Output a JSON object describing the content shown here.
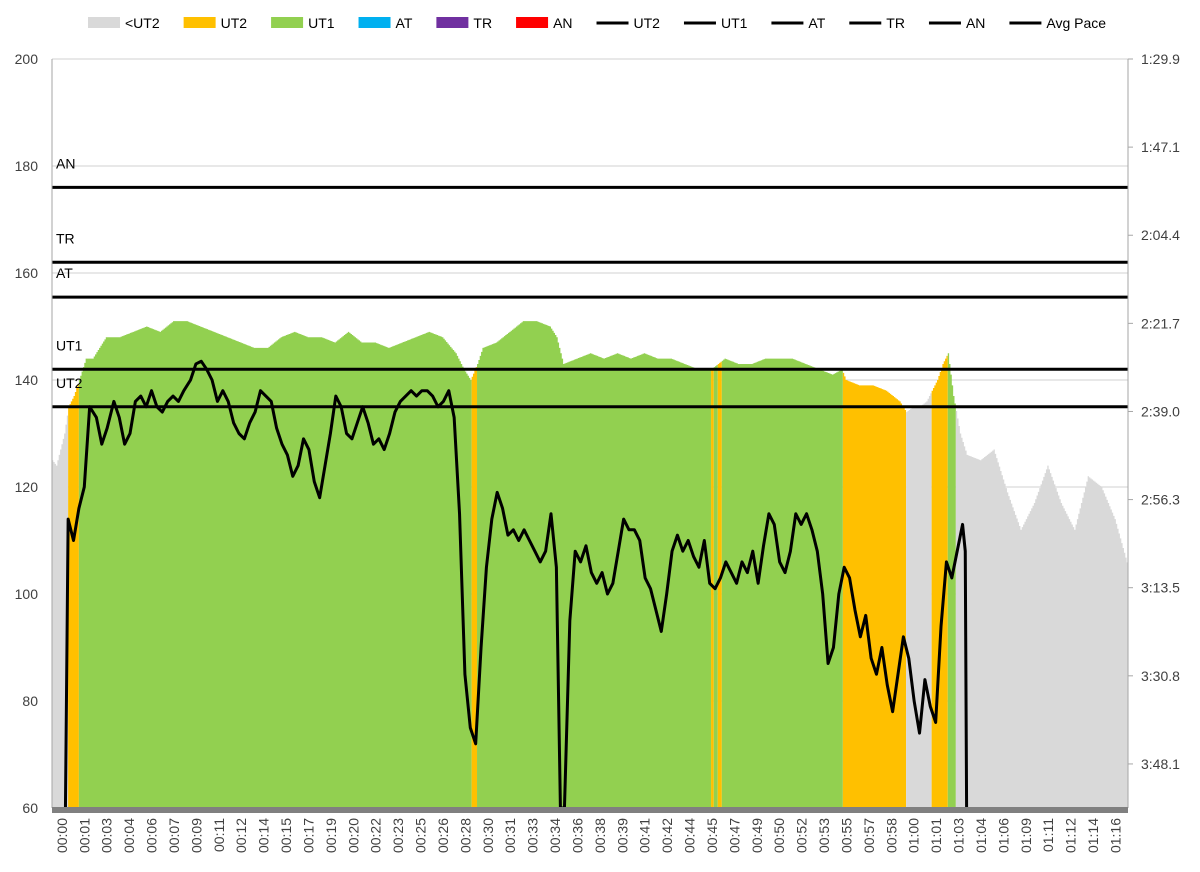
{
  "chart_data": {
    "type": "area",
    "x_unit": "elapsed time (hh:mm)",
    "categories": [
      "00:00",
      "00:01",
      "00:03",
      "00:04",
      "00:06",
      "00:07",
      "00:09",
      "00:11",
      "00:12",
      "00:14",
      "00:15",
      "00:17",
      "00:19",
      "00:20",
      "00:22",
      "00:23",
      "00:25",
      "00:26",
      "00:28",
      "00:30",
      "00:31",
      "00:33",
      "00:34",
      "00:36",
      "00:38",
      "00:39",
      "00:41",
      "00:42",
      "00:44",
      "00:45",
      "00:47",
      "00:49",
      "00:50",
      "00:52",
      "00:53",
      "00:55",
      "00:57",
      "00:58",
      "01:00",
      "01:01",
      "01:03",
      "01:04",
      "01:06",
      "01:09",
      "01:11",
      "01:12",
      "01:14",
      "01:16"
    ],
    "y_left": {
      "min": 60,
      "max": 200,
      "step": 20,
      "ticks": [
        "60",
        "80",
        "100",
        "120",
        "140",
        "160",
        "180",
        "200"
      ]
    },
    "y_right": {
      "ticks": [
        "3:48.1",
        "3:30.8",
        "3:13.5",
        "2:56.3",
        "2:39.0",
        "2:21.7",
        "2:04.4",
        "1:47.1",
        "1:29.9"
      ]
    },
    "legend": [
      "<UT2",
      "UT2",
      "UT1",
      "AT",
      "TR",
      "AN",
      "UT2",
      "UT1",
      "AT",
      "TR",
      "AN",
      "Avg Pace"
    ],
    "zone_colors": {
      "<UT2": "#d9d9d9",
      "UT2": "#ffc000",
      "UT1": "#92d050",
      "AT": "#00b0f0",
      "TR": "#7030a0",
      "AN": "#ff0000"
    },
    "threshold_lines": [
      {
        "name": "AN",
        "value": 176
      },
      {
        "name": "TR",
        "value": 162
      },
      {
        "name": "AT",
        "value": 155.5
      },
      {
        "name": "UT1",
        "value": 142
      },
      {
        "name": "UT2",
        "value": 135
      }
    ],
    "heart_rate_profile": [
      [
        0,
        125
      ],
      [
        0.3,
        124
      ],
      [
        0.6,
        127
      ],
      [
        0.9,
        130
      ],
      [
        1.2,
        135
      ],
      [
        1.6,
        137
      ],
      [
        2.0,
        140
      ],
      [
        2.5,
        144
      ],
      [
        3.0,
        144
      ],
      [
        3.5,
        146
      ],
      [
        4.0,
        148
      ],
      [
        5.0,
        148
      ],
      [
        6.0,
        149
      ],
      [
        7.0,
        150
      ],
      [
        8.0,
        149
      ],
      [
        9.0,
        151
      ],
      [
        10.0,
        151
      ],
      [
        11.0,
        150
      ],
      [
        12.0,
        149
      ],
      [
        13.0,
        148
      ],
      [
        14.0,
        147
      ],
      [
        15.0,
        146
      ],
      [
        16.0,
        146
      ],
      [
        17.0,
        148
      ],
      [
        18.0,
        149
      ],
      [
        19.0,
        148
      ],
      [
        20.0,
        148
      ],
      [
        21.0,
        147
      ],
      [
        22.0,
        149
      ],
      [
        23.0,
        147
      ],
      [
        24.0,
        147
      ],
      [
        25.0,
        146
      ],
      [
        26.0,
        147
      ],
      [
        27.0,
        148
      ],
      [
        28.0,
        149
      ],
      [
        29.0,
        148
      ],
      [
        30.0,
        145
      ],
      [
        30.6,
        142
      ],
      [
        31.1,
        140
      ],
      [
        31.6,
        143
      ],
      [
        32.0,
        146
      ],
      [
        33.0,
        147
      ],
      [
        34.0,
        149
      ],
      [
        35.0,
        151
      ],
      [
        36.0,
        151
      ],
      [
        37.0,
        150
      ],
      [
        37.5,
        148
      ],
      [
        38.0,
        143
      ],
      [
        39.0,
        144
      ],
      [
        40.0,
        145
      ],
      [
        41.0,
        144
      ],
      [
        42.0,
        145
      ],
      [
        43.0,
        144
      ],
      [
        44.0,
        145
      ],
      [
        45.0,
        144
      ],
      [
        46.0,
        144
      ],
      [
        47.0,
        143
      ],
      [
        48.0,
        142
      ],
      [
        49.0,
        142
      ],
      [
        50.0,
        144
      ],
      [
        51.0,
        143
      ],
      [
        52.0,
        143
      ],
      [
        53.0,
        144
      ],
      [
        54.0,
        144
      ],
      [
        55.0,
        144
      ],
      [
        56.0,
        143
      ],
      [
        57.0,
        142
      ],
      [
        58.0,
        141
      ],
      [
        58.7,
        142
      ],
      [
        59.0,
        140
      ],
      [
        60.0,
        139
      ],
      [
        61.0,
        139
      ],
      [
        62.0,
        138
      ],
      [
        63.0,
        136
      ],
      [
        63.5,
        134
      ],
      [
        64.0,
        135
      ],
      [
        64.5,
        135
      ],
      [
        65.0,
        136
      ],
      [
        65.4,
        138
      ],
      [
        65.8,
        140
      ],
      [
        66.2,
        143
      ],
      [
        66.6,
        145
      ],
      [
        67.0,
        137
      ],
      [
        67.5,
        130
      ],
      [
        68.0,
        126
      ],
      [
        69.0,
        125
      ],
      [
        70.0,
        127
      ],
      [
        71.0,
        119
      ],
      [
        72.0,
        112
      ],
      [
        73.0,
        117
      ],
      [
        74.0,
        124
      ],
      [
        75.0,
        117
      ],
      [
        76.0,
        112
      ],
      [
        77.0,
        122
      ],
      [
        78.0,
        120
      ],
      [
        79.0,
        114
      ],
      [
        80.0,
        105
      ]
    ],
    "zone_segments": [
      [
        0,
        1.2,
        "<UT2"
      ],
      [
        1.2,
        2.0,
        "UT2"
      ],
      [
        2.0,
        31.2,
        "UT1"
      ],
      [
        31.2,
        31.6,
        "UT2"
      ],
      [
        31.6,
        49.0,
        "UT1"
      ],
      [
        49.0,
        49.2,
        "UT2"
      ],
      [
        49.2,
        49.5,
        "UT1"
      ],
      [
        49.5,
        49.8,
        "UT2"
      ],
      [
        49.8,
        58.8,
        "UT1"
      ],
      [
        58.8,
        63.5,
        "UT2"
      ],
      [
        63.5,
        65.4,
        "<UT2"
      ],
      [
        65.4,
        66.6,
        "UT2"
      ],
      [
        66.6,
        67.2,
        "UT1"
      ],
      [
        67.2,
        80.0,
        "<UT2"
      ]
    ],
    "avg_pace_series": [
      [
        1.0,
        60
      ],
      [
        1.2,
        114
      ],
      [
        1.6,
        110
      ],
      [
        2.0,
        116
      ],
      [
        2.4,
        120
      ],
      [
        2.8,
        135
      ],
      [
        3.3,
        133
      ],
      [
        3.7,
        128
      ],
      [
        4.1,
        131
      ],
      [
        4.6,
        136
      ],
      [
        5.0,
        133
      ],
      [
        5.4,
        128
      ],
      [
        5.8,
        130
      ],
      [
        6.2,
        136
      ],
      [
        6.6,
        137
      ],
      [
        7.0,
        135
      ],
      [
        7.4,
        138
      ],
      [
        7.8,
        135
      ],
      [
        8.2,
        134
      ],
      [
        8.6,
        136
      ],
      [
        9.0,
        137
      ],
      [
        9.4,
        136
      ],
      [
        9.8,
        138
      ],
      [
        10.3,
        140
      ],
      [
        10.7,
        143
      ],
      [
        11.1,
        143.5
      ],
      [
        11.5,
        142
      ],
      [
        11.9,
        140
      ],
      [
        12.3,
        136
      ],
      [
        12.7,
        138
      ],
      [
        13.1,
        136
      ],
      [
        13.5,
        132
      ],
      [
        13.9,
        130
      ],
      [
        14.3,
        129
      ],
      [
        14.7,
        132
      ],
      [
        15.1,
        134
      ],
      [
        15.5,
        138
      ],
      [
        15.9,
        137
      ],
      [
        16.3,
        136
      ],
      [
        16.7,
        131
      ],
      [
        17.1,
        128
      ],
      [
        17.5,
        126
      ],
      [
        17.9,
        122
      ],
      [
        18.3,
        124
      ],
      [
        18.7,
        129
      ],
      [
        19.1,
        127
      ],
      [
        19.5,
        121
      ],
      [
        19.9,
        118
      ],
      [
        20.3,
        124
      ],
      [
        20.7,
        130
      ],
      [
        21.1,
        137
      ],
      [
        21.5,
        135
      ],
      [
        21.9,
        130
      ],
      [
        22.3,
        129
      ],
      [
        22.7,
        132
      ],
      [
        23.1,
        135
      ],
      [
        23.5,
        132
      ],
      [
        23.9,
        128
      ],
      [
        24.3,
        129
      ],
      [
        24.7,
        127
      ],
      [
        25.1,
        130
      ],
      [
        25.5,
        134
      ],
      [
        25.9,
        136
      ],
      [
        26.3,
        137
      ],
      [
        26.7,
        138
      ],
      [
        27.1,
        137
      ],
      [
        27.5,
        138
      ],
      [
        27.9,
        138
      ],
      [
        28.3,
        137
      ],
      [
        28.7,
        135
      ],
      [
        29.1,
        136
      ],
      [
        29.5,
        138
      ],
      [
        29.9,
        133
      ],
      [
        30.3,
        115
      ],
      [
        30.7,
        85
      ],
      [
        31.1,
        75
      ],
      [
        31.5,
        72
      ],
      [
        31.9,
        90
      ],
      [
        32.3,
        105
      ],
      [
        32.7,
        114
      ],
      [
        33.1,
        119
      ],
      [
        33.5,
        116
      ],
      [
        33.9,
        111
      ],
      [
        34.3,
        112
      ],
      [
        34.7,
        110
      ],
      [
        35.1,
        112
      ],
      [
        35.5,
        110
      ],
      [
        35.9,
        108
      ],
      [
        36.3,
        106
      ],
      [
        36.7,
        108
      ],
      [
        37.1,
        115
      ],
      [
        37.5,
        105
      ],
      [
        37.8,
        60
      ],
      [
        38.1,
        60
      ],
      [
        38.5,
        95
      ],
      [
        38.9,
        108
      ],
      [
        39.3,
        106
      ],
      [
        39.7,
        109
      ],
      [
        40.1,
        104
      ],
      [
        40.5,
        102
      ],
      [
        40.9,
        104
      ],
      [
        41.3,
        100
      ],
      [
        41.7,
        102
      ],
      [
        42.1,
        108
      ],
      [
        42.5,
        114
      ],
      [
        42.9,
        112
      ],
      [
        43.3,
        112
      ],
      [
        43.7,
        110
      ],
      [
        44.1,
        103
      ],
      [
        44.5,
        101
      ],
      [
        44.9,
        97
      ],
      [
        45.3,
        93
      ],
      [
        45.7,
        100
      ],
      [
        46.1,
        108
      ],
      [
        46.5,
        111
      ],
      [
        46.9,
        108
      ],
      [
        47.3,
        110
      ],
      [
        47.7,
        107
      ],
      [
        48.1,
        105
      ],
      [
        48.5,
        110
      ],
      [
        48.9,
        102
      ],
      [
        49.3,
        101
      ],
      [
        49.7,
        103
      ],
      [
        50.1,
        106
      ],
      [
        50.5,
        104
      ],
      [
        50.9,
        102
      ],
      [
        51.3,
        106
      ],
      [
        51.7,
        104
      ],
      [
        52.1,
        108
      ],
      [
        52.5,
        102
      ],
      [
        52.9,
        109
      ],
      [
        53.3,
        115
      ],
      [
        53.7,
        113
      ],
      [
        54.1,
        106
      ],
      [
        54.5,
        104
      ],
      [
        54.9,
        108
      ],
      [
        55.3,
        115
      ],
      [
        55.7,
        113
      ],
      [
        56.1,
        115
      ],
      [
        56.5,
        112
      ],
      [
        56.9,
        108
      ],
      [
        57.3,
        100
      ],
      [
        57.7,
        87
      ],
      [
        58.1,
        90
      ],
      [
        58.5,
        100
      ],
      [
        58.9,
        105
      ],
      [
        59.3,
        103
      ],
      [
        59.7,
        97
      ],
      [
        60.1,
        92
      ],
      [
        60.5,
        96
      ],
      [
        60.9,
        88
      ],
      [
        61.3,
        85
      ],
      [
        61.7,
        90
      ],
      [
        62.1,
        83
      ],
      [
        62.5,
        78
      ],
      [
        62.9,
        85
      ],
      [
        63.3,
        92
      ],
      [
        63.7,
        88
      ],
      [
        64.1,
        80
      ],
      [
        64.5,
        74
      ],
      [
        64.9,
        84
      ],
      [
        65.3,
        79
      ],
      [
        65.7,
        76
      ],
      [
        66.1,
        94
      ],
      [
        66.5,
        106
      ],
      [
        66.9,
        103
      ],
      [
        67.3,
        108
      ],
      [
        67.7,
        113
      ],
      [
        67.9,
        108
      ],
      [
        68.0,
        60
      ]
    ]
  }
}
